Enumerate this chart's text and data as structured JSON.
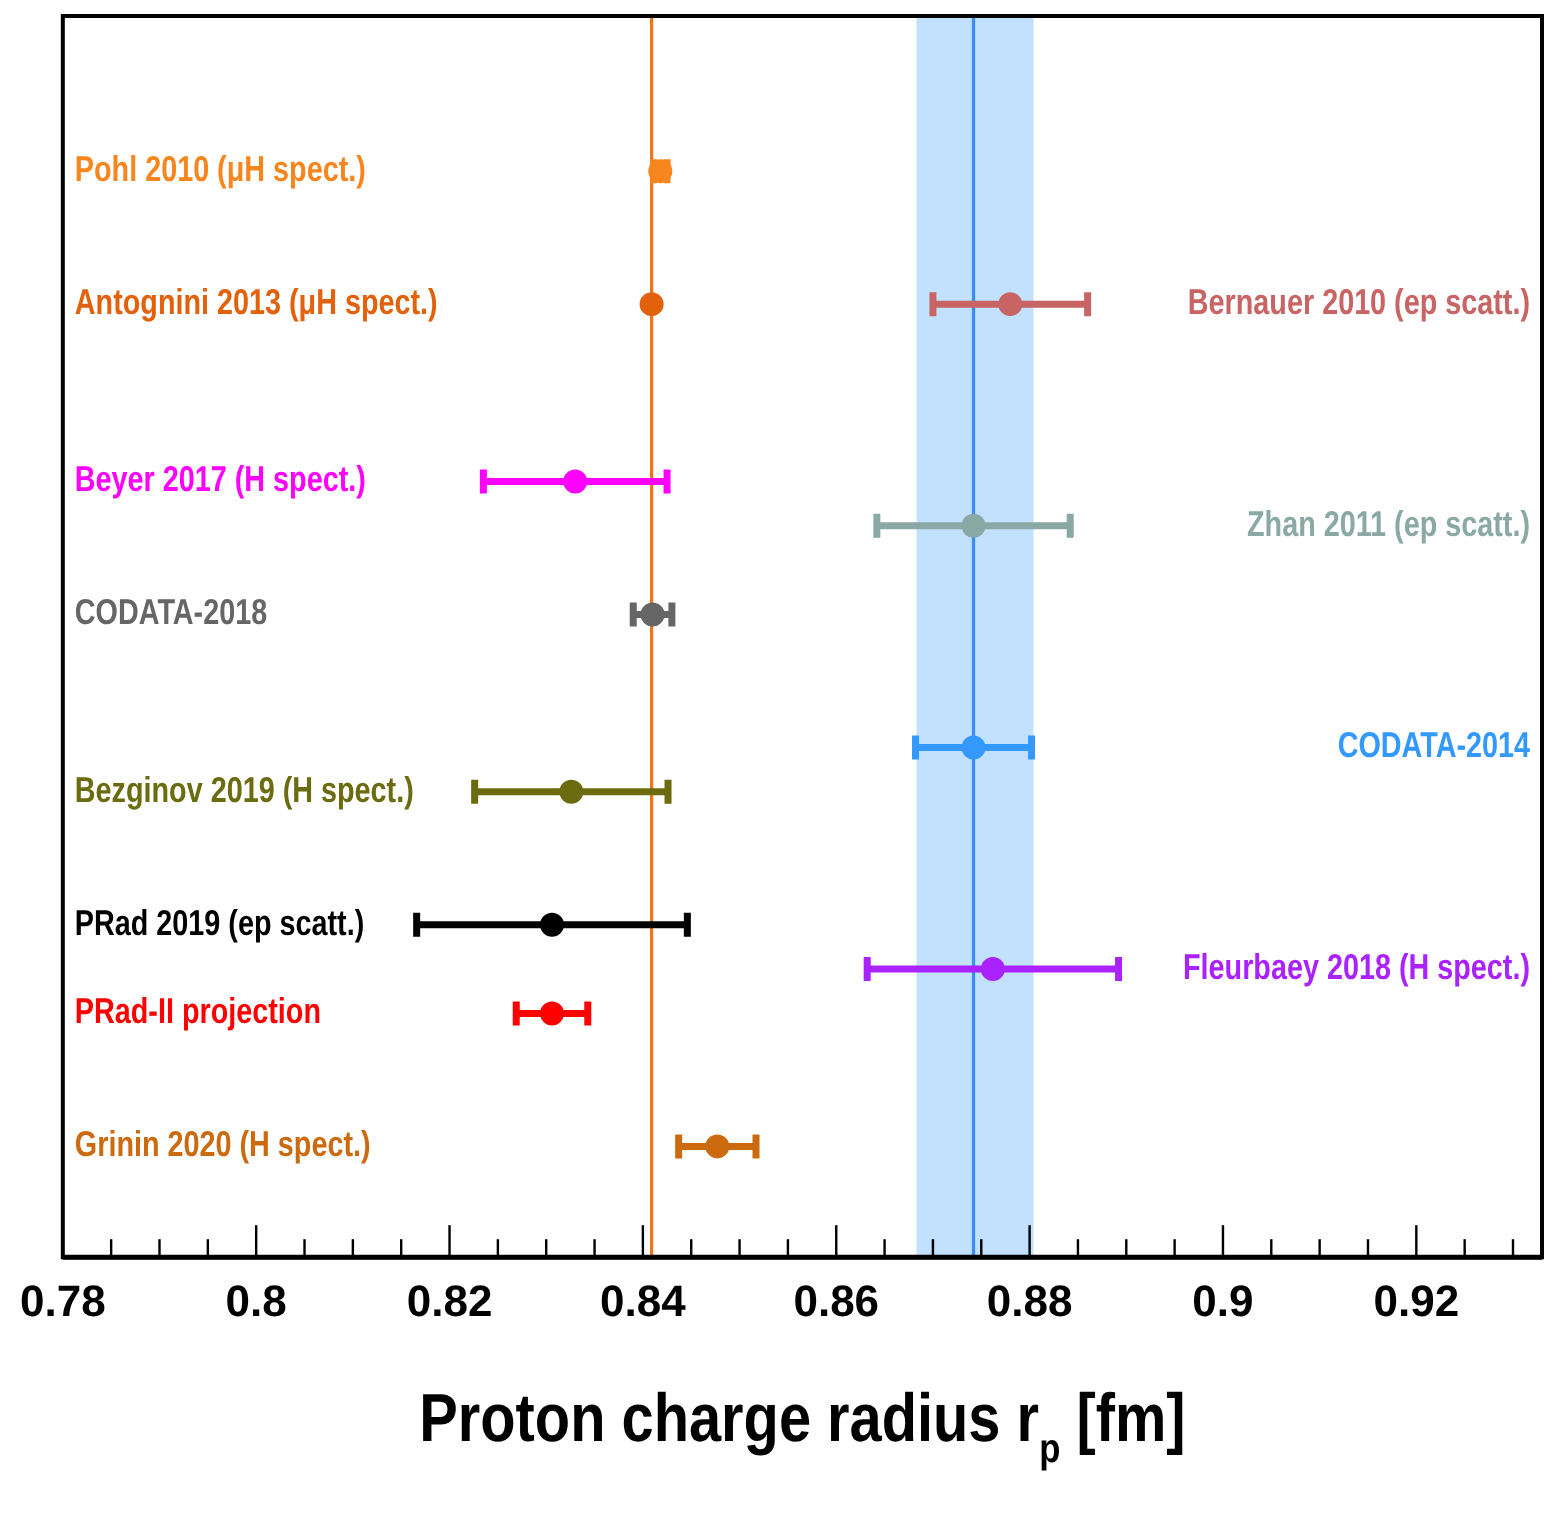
{
  "chart_data": {
    "type": "scatter",
    "orientation": "horizontal",
    "xlabel": "Proton charge radius r$_{p}$ [fm]",
    "xlim": [
      0.78,
      0.933
    ],
    "categories": [
      null,
      null,
      null,
      null,
      null,
      null,
      null,
      null,
      null,
      null,
      null,
      null,
      null,
      null,
      null,
      null,
      null,
      null,
      null,
      null,
      null,
      null,
      null,
      null,
      null,
      null,
      null,
      null
    ],
    "xticks": [
      0.78,
      {
        "value": 0.785,
        "label": null
      },
      {
        "value": 0.79,
        "label": null
      },
      {
        "value": 0.795,
        "label": null
      },
      0.8,
      {
        "value": 0.805,
        "label": null
      },
      {
        "value": 0.81,
        "label": null
      },
      {
        "value": 0.815,
        "label": null
      },
      0.82,
      {
        "value": 0.825,
        "label": null
      },
      {
        "value": 0.83,
        "label": null
      },
      {
        "value": 0.835,
        "label": null
      },
      0.84,
      {
        "value": 0.845,
        "label": null
      },
      {
        "value": 0.85,
        "label": null
      },
      {
        "value": 0.855,
        "label": null
      },
      0.86,
      {
        "value": 0.865,
        "label": null
      },
      {
        "value": 0.87,
        "label": null
      },
      {
        "value": 0.875,
        "label": null
      },
      0.88,
      {
        "value": 0.885,
        "label": null
      },
      {
        "value": 0.89,
        "label": null
      },
      {
        "value": 0.895,
        "label": null
      },
      0.9,
      {
        "value": 0.905,
        "label": null
      },
      {
        "value": 0.91,
        "label": null
      },
      {
        "value": 0.915,
        "label": null
      },
      0.92,
      {
        "value": 0.925,
        "label": null
      },
      {
        "value": 0.93,
        "label": null
      }
    ],
    "tick_labels": "x",
    "grid": false,
    "marker": "circle",
    "bands": [
      {
        "axis": "x",
        "from": 0.8683,
        "to": 0.8804,
        "color": "#c2e0ff"
      }
    ],
    "ref_lines": [
      {
        "axis": "x",
        "value": 0.8409,
        "color": "#f07418"
      },
      {
        "axis": "x",
        "value": 0.8742,
        "color": "#3a8ef0"
      }
    ],
    "series": [
      {
        "name": "Pohl 2010 (μH spect.)",
        "color": "#f8861e",
        "values": [
          null,
          null,
          null,
          0.8418,
          null,
          null,
          null,
          null,
          null,
          null,
          null,
          null,
          null,
          null,
          null,
          null,
          null,
          null,
          null,
          null,
          null,
          null,
          null,
          null,
          null,
          null,
          null,
          null
        ],
        "errors": [
          null,
          null,
          null,
          0.0007,
          null,
          null,
          null,
          null,
          null,
          null,
          null,
          null,
          null,
          null,
          null,
          null,
          null,
          null,
          null,
          null,
          null,
          null,
          null,
          null,
          null,
          null,
          null,
          null
        ]
      },
      {
        "name": "Antognini 2013 (μH spect.)",
        "color": "#e2620c",
        "values": [
          null,
          null,
          null,
          null,
          null,
          null,
          0.8409,
          null,
          null,
          null,
          null,
          null,
          null,
          null,
          null,
          null,
          null,
          null,
          null,
          null,
          null,
          null,
          null,
          null,
          null,
          null,
          null,
          null
        ]
      },
      {
        "name": "Beyer 2017 (H spect.)",
        "color": "#ff00ff",
        "values": [
          null,
          null,
          null,
          null,
          null,
          null,
          null,
          null,
          null,
          null,
          0.833,
          null,
          null,
          null,
          null,
          null,
          null,
          null,
          null,
          null,
          null,
          null,
          null,
          null,
          null,
          null,
          null,
          null
        ],
        "errors": [
          null,
          null,
          null,
          null,
          null,
          null,
          null,
          null,
          null,
          null,
          0.0095,
          null,
          null,
          null,
          null,
          null,
          null,
          null,
          null,
          null,
          null,
          null,
          null,
          null,
          null,
          null,
          null,
          null
        ]
      },
      {
        "name": "CODATA-2018",
        "color": "#666666",
        "values": [
          null,
          null,
          null,
          null,
          null,
          null,
          null,
          null,
          null,
          null,
          null,
          null,
          null,
          0.841,
          null,
          null,
          null,
          null,
          null,
          null,
          null,
          null,
          null,
          null,
          null,
          null,
          null,
          null
        ],
        "errors": [
          null,
          null,
          null,
          null,
          null,
          null,
          null,
          null,
          null,
          null,
          null,
          null,
          null,
          0.002,
          null,
          null,
          null,
          null,
          null,
          null,
          null,
          null,
          null,
          null,
          null,
          null,
          null,
          null
        ]
      },
      {
        "name": "Bezginov 2019 (H spect.)",
        "color": "#6b6b10",
        "values": [
          null,
          null,
          null,
          null,
          null,
          null,
          null,
          null,
          null,
          null,
          null,
          null,
          null,
          null,
          null,
          null,
          null,
          0.8326,
          null,
          null,
          null,
          null,
          null,
          null,
          null,
          null,
          null,
          null
        ],
        "errors": [
          null,
          null,
          null,
          null,
          null,
          null,
          null,
          null,
          null,
          null,
          null,
          null,
          null,
          null,
          null,
          null,
          null,
          0.01,
          null,
          null,
          null,
          null,
          null,
          null,
          null,
          null,
          null,
          null
        ]
      },
      {
        "name": "PRad 2019 (ep scatt.)",
        "color": "#000000",
        "values": [
          null,
          null,
          null,
          null,
          null,
          null,
          null,
          null,
          null,
          null,
          null,
          null,
          null,
          null,
          null,
          null,
          null,
          null,
          null,
          null,
          0.8306,
          null,
          null,
          null,
          null,
          null,
          null,
          null
        ],
        "errors": [
          null,
          null,
          null,
          null,
          null,
          null,
          null,
          null,
          null,
          null,
          null,
          null,
          null,
          null,
          null,
          null,
          null,
          null,
          null,
          null,
          0.014,
          null,
          null,
          null,
          null,
          null,
          null,
          null
        ]
      },
      {
        "name": "PRad-II projection",
        "color": "#ff0000",
        "values": [
          null,
          null,
          null,
          null,
          null,
          null,
          null,
          null,
          null,
          null,
          null,
          null,
          null,
          null,
          null,
          null,
          null,
          null,
          null,
          null,
          null,
          null,
          0.8306,
          null,
          null,
          null,
          null,
          null
        ],
        "errors": [
          null,
          null,
          null,
          null,
          null,
          null,
          null,
          null,
          null,
          null,
          null,
          null,
          null,
          null,
          null,
          null,
          null,
          null,
          null,
          null,
          null,
          null,
          0.0037,
          null,
          null,
          null,
          null,
          null
        ]
      },
      {
        "name": "Grinin 2020 (H spect.)",
        "color": "#cc6a10",
        "values": [
          null,
          null,
          null,
          null,
          null,
          null,
          null,
          null,
          null,
          null,
          null,
          null,
          null,
          null,
          null,
          null,
          null,
          null,
          null,
          null,
          null,
          null,
          null,
          null,
          null,
          0.8477,
          null,
          null
        ],
        "errors": [
          null,
          null,
          null,
          null,
          null,
          null,
          null,
          null,
          null,
          null,
          null,
          null,
          null,
          null,
          null,
          null,
          null,
          null,
          null,
          null,
          null,
          null,
          null,
          null,
          null,
          0.004,
          null,
          null
        ]
      },
      {
        "name": "Bernauer 2010 (ep scatt.)",
        "color": "#c86464",
        "values": [
          null,
          null,
          null,
          null,
          null,
          null,
          0.878,
          null,
          null,
          null,
          null,
          null,
          null,
          null,
          null,
          null,
          null,
          null,
          null,
          null,
          null,
          null,
          null,
          null,
          null,
          null,
          null,
          null
        ],
        "errors": [
          null,
          null,
          null,
          null,
          null,
          null,
          0.008,
          null,
          null,
          null,
          null,
          null,
          null,
          null,
          null,
          null,
          null,
          null,
          null,
          null,
          null,
          null,
          null,
          null,
          null,
          null,
          null,
          null
        ]
      },
      {
        "name": "Zhan 2011 (ep scatt.)",
        "color": "#8aa8a4",
        "values": [
          null,
          null,
          null,
          null,
          null,
          null,
          null,
          null,
          null,
          null,
          null,
          0.8742,
          null,
          null,
          null,
          null,
          null,
          null,
          null,
          null,
          null,
          null,
          null,
          null,
          null,
          null,
          null,
          null
        ],
        "errors": [
          null,
          null,
          null,
          null,
          null,
          null,
          null,
          null,
          null,
          null,
          null,
          0.01,
          null,
          null,
          null,
          null,
          null,
          null,
          null,
          null,
          null,
          null,
          null,
          null,
          null,
          null,
          null,
          null
        ]
      },
      {
        "name": "CODATA-2014",
        "color": "#3399ff",
        "values": [
          null,
          null,
          null,
          null,
          null,
          null,
          null,
          null,
          null,
          null,
          null,
          null,
          null,
          null,
          null,
          null,
          0.8742,
          null,
          null,
          null,
          null,
          null,
          null,
          null,
          null,
          null,
          null,
          null
        ],
        "errors": [
          null,
          null,
          null,
          null,
          null,
          null,
          null,
          null,
          null,
          null,
          null,
          null,
          null,
          null,
          null,
          null,
          0.006,
          null,
          null,
          null,
          null,
          null,
          null,
          null,
          null,
          null,
          null,
          null
        ]
      },
      {
        "name": "Fleurbaey 2018 (H spect.)",
        "color": "#aa22ff",
        "values": [
          null,
          null,
          null,
          null,
          null,
          null,
          null,
          null,
          null,
          null,
          null,
          null,
          null,
          null,
          null,
          null,
          null,
          null,
          null,
          null,
          null,
          0.8762,
          null,
          null,
          null,
          null,
          null,
          null
        ],
        "errors": [
          null,
          null,
          null,
          null,
          null,
          null,
          null,
          null,
          null,
          null,
          null,
          null,
          null,
          null,
          null,
          null,
          null,
          null,
          null,
          null,
          null,
          0.013,
          null,
          null,
          null,
          null,
          null,
          null
        ]
      }
    ]
  }
}
